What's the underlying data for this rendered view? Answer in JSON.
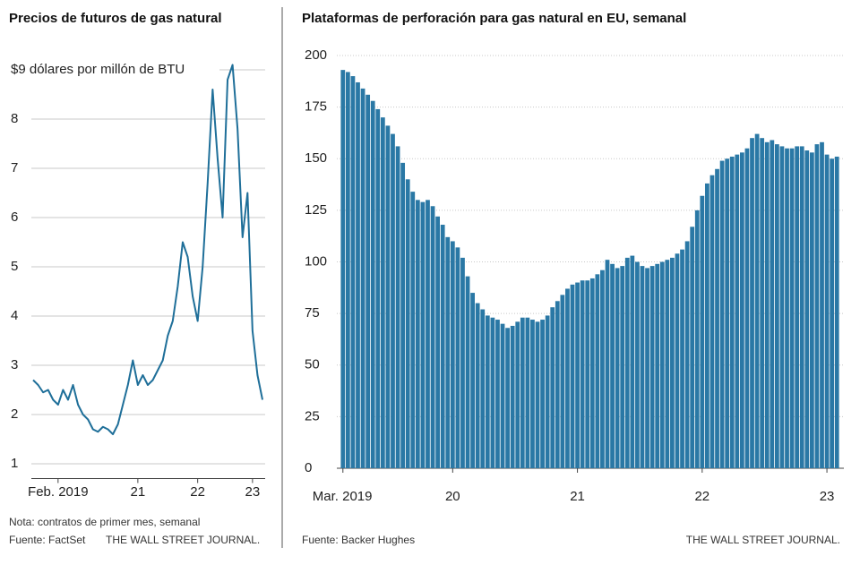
{
  "chart_data": [
    {
      "type": "line",
      "title": "Precios de futuros de gas natural",
      "note": "Nota: contratos de primer mes, semanal",
      "source": "Fuente: FactSet",
      "credit": "THE WALL STREET JOURNAL.",
      "color": "#1f6f99",
      "grid": true,
      "categories": [
        null,
        null,
        null,
        null,
        null,
        "Feb. 2019",
        null,
        null,
        null,
        null,
        null,
        null,
        null,
        null,
        null,
        null,
        null,
        null,
        null,
        null,
        null,
        "21",
        null,
        null,
        null,
        null,
        null,
        null,
        null,
        null,
        null,
        null,
        null,
        "22",
        null,
        null,
        null,
        null,
        null,
        null,
        null,
        null,
        null,
        null,
        "23",
        null,
        null
      ],
      "values": [
        2.7,
        2.6,
        2.45,
        2.5,
        2.3,
        2.2,
        2.5,
        2.3,
        2.6,
        2.2,
        2.0,
        1.9,
        1.7,
        1.65,
        1.75,
        1.7,
        1.6,
        1.8,
        2.2,
        2.6,
        3.1,
        2.6,
        2.8,
        2.6,
        2.7,
        2.9,
        3.1,
        3.6,
        3.9,
        4.6,
        5.5,
        5.2,
        4.4,
        3.9,
        5.0,
        6.7,
        8.6,
        7.2,
        6.0,
        8.8,
        9.1,
        7.8,
        5.6,
        6.5,
        3.7,
        2.8,
        2.3
      ],
      "ylim": [
        0.7,
        9.2
      ],
      "yticks": [
        1,
        2,
        3,
        4,
        5,
        6,
        7,
        8,
        {
          "value": 9,
          "label": "$9 dólares por millón de BTU"
        }
      ]
    },
    {
      "type": "bar",
      "title": "Plataformas de perforación para gas natural en EU, semanal",
      "source": "Fuente: Backer Hughes",
      "credit": "THE WALL STREET JOURNAL.",
      "color": "#2a78a5",
      "grid": true,
      "categories": [
        "Mar. 2019",
        null,
        null,
        null,
        null,
        null,
        null,
        null,
        null,
        null,
        null,
        null,
        null,
        null,
        null,
        null,
        null,
        null,
        null,
        null,
        null,
        null,
        "20",
        null,
        null,
        null,
        null,
        null,
        null,
        null,
        null,
        null,
        null,
        null,
        null,
        null,
        null,
        null,
        null,
        null,
        null,
        null,
        null,
        null,
        null,
        null,
        null,
        "21",
        null,
        null,
        null,
        null,
        null,
        null,
        null,
        null,
        null,
        null,
        null,
        null,
        null,
        null,
        null,
        null,
        null,
        null,
        null,
        null,
        null,
        null,
        null,
        null,
        "22",
        null,
        null,
        null,
        null,
        null,
        null,
        null,
        null,
        null,
        null,
        null,
        null,
        null,
        null,
        null,
        null,
        null,
        null,
        null,
        null,
        null,
        null,
        null,
        null,
        "23",
        null,
        null
      ],
      "values": [
        193,
        192,
        190,
        187,
        184,
        181,
        178,
        174,
        170,
        166,
        162,
        156,
        148,
        140,
        134,
        130,
        129,
        130,
        127,
        122,
        118,
        112,
        110,
        107,
        102,
        93,
        85,
        80,
        77,
        74,
        73,
        72,
        70,
        68,
        69,
        71,
        73,
        73,
        72,
        71,
        72,
        74,
        78,
        81,
        84,
        87,
        89,
        90,
        91,
        91,
        92,
        94,
        96,
        101,
        99,
        97,
        98,
        102,
        103,
        100,
        98,
        97,
        98,
        99,
        100,
        101,
        102,
        104,
        106,
        110,
        117,
        125,
        132,
        138,
        142,
        145,
        149,
        150,
        151,
        152,
        153,
        155,
        160,
        162,
        160,
        158,
        159,
        157,
        156,
        155,
        155,
        156,
        156,
        154,
        153,
        157,
        158,
        152,
        150,
        151
      ],
      "ylim": [
        0,
        200
      ],
      "yticks": [
        0,
        25,
        50,
        75,
        100,
        125,
        150,
        175,
        200
      ]
    }
  ]
}
